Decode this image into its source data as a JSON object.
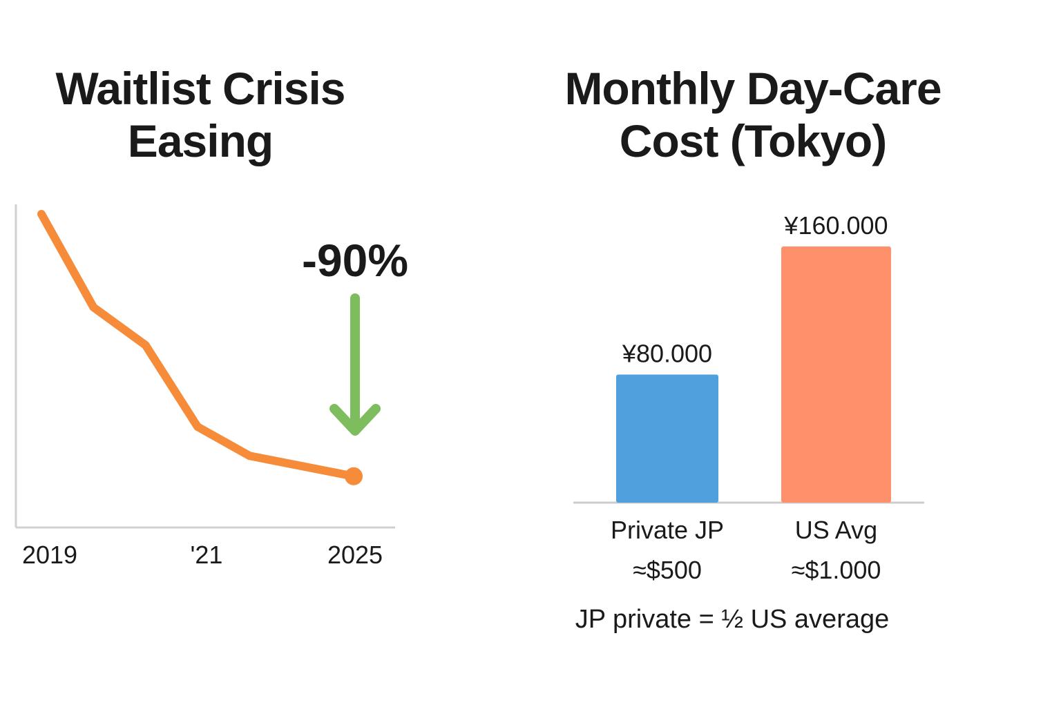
{
  "chart_data": [
    {
      "type": "line",
      "title": "Waitlist Crisis Easing",
      "title_lines": [
        "Waitlist Crisis",
        "Easing"
      ],
      "x_tick_labels": [
        "2019",
        "'21",
        "2025"
      ],
      "x": [
        2019,
        2020,
        2021,
        2022,
        2023,
        2025
      ],
      "series": [
        {
          "values": [
            100,
            68,
            55,
            27,
            17,
            10
          ],
          "color": "#f68b3a"
        }
      ],
      "annotation": {
        "text": "-90%",
        "arrow_color": "#7dbd5e"
      },
      "ylim": [
        0,
        100
      ],
      "grid": false
    },
    {
      "type": "bar",
      "title": "Monthly Day-Care Cost (Tokyo)",
      "title_lines": [
        "Monthly Day-Care",
        "Cost (Tokyo)"
      ],
      "categories": [
        "Private JP",
        "US Avg"
      ],
      "sub_labels": [
        "≈$500",
        "≈$1.000"
      ],
      "values": [
        80000,
        160000
      ],
      "value_labels": [
        "¥80.000",
        "¥160.000"
      ],
      "colors": [
        "#4fa0dd",
        "#fe916c"
      ],
      "ylim": [
        0,
        160000
      ],
      "grid": false,
      "footnote": "JP private = ½ US average"
    }
  ]
}
